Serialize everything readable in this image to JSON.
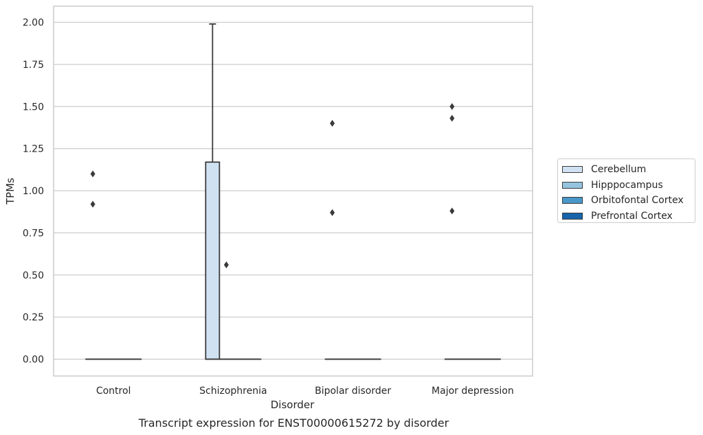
{
  "chart_data": {
    "type": "box",
    "title": "",
    "caption": "Transcript expression for ENST00000615272 by disorder",
    "xlabel": "Disorder",
    "ylabel": "TPMs",
    "ylim": [
      -0.1,
      2.1
    ],
    "yticks": [
      "0.00",
      "0.25",
      "0.50",
      "0.75",
      "1.00",
      "1.25",
      "1.50",
      "1.75",
      "2.00"
    ],
    "ytick_values": [
      0,
      0.25,
      0.5,
      0.75,
      1.0,
      1.25,
      1.5,
      1.75,
      2.0
    ],
    "categories": [
      "Control",
      "Schizophrenia",
      "Bipolar disorder",
      "Major depression"
    ],
    "grid": "horizontal",
    "legend_position": "right",
    "series": [
      {
        "name": "Cerebellum",
        "color": "#d0e1f2",
        "boxes": [
          {
            "q1": 0,
            "median": 0,
            "q3": 0,
            "whisker_low": 0,
            "whisker_high": 0,
            "outliers": [
              0.92,
              1.1
            ]
          },
          {
            "q1": 0,
            "median": 0,
            "q3": 1.17,
            "whisker_low": 0,
            "whisker_high": 1.99,
            "outliers": []
          },
          {
            "q1": 0,
            "median": 0,
            "q3": 0,
            "whisker_low": 0,
            "whisker_high": 0,
            "outliers": [
              0.87,
              1.4
            ]
          },
          {
            "q1": 0,
            "median": 0,
            "q3": 0,
            "whisker_low": 0,
            "whisker_high": 0,
            "outliers": [
              0.88,
              1.43,
              1.5
            ]
          }
        ]
      },
      {
        "name": "Hipppocampus",
        "color": "#94c4df",
        "boxes": [
          {
            "q1": 0,
            "median": 0,
            "q3": 0,
            "whisker_low": 0,
            "whisker_high": 0,
            "outliers": []
          },
          {
            "q1": 0,
            "median": 0,
            "q3": 0,
            "whisker_low": 0,
            "whisker_high": 0,
            "outliers": [
              0.56
            ]
          },
          {
            "q1": 0,
            "median": 0,
            "q3": 0,
            "whisker_low": 0,
            "whisker_high": 0,
            "outliers": []
          },
          {
            "q1": 0,
            "median": 0,
            "q3": 0,
            "whisker_low": 0,
            "whisker_high": 0,
            "outliers": []
          }
        ]
      },
      {
        "name": "Orbitofontal Cortex",
        "color": "#4a98c9",
        "boxes": [
          {
            "q1": 0,
            "median": 0,
            "q3": 0,
            "whisker_low": 0,
            "whisker_high": 0,
            "outliers": []
          },
          {
            "q1": 0,
            "median": 0,
            "q3": 0,
            "whisker_low": 0,
            "whisker_high": 0,
            "outliers": []
          },
          {
            "q1": 0,
            "median": 0,
            "q3": 0,
            "whisker_low": 0,
            "whisker_high": 0,
            "outliers": []
          },
          {
            "q1": 0,
            "median": 0,
            "q3": 0,
            "whisker_low": 0,
            "whisker_high": 0,
            "outliers": []
          }
        ]
      },
      {
        "name": "Prefrontal Cortex",
        "color": "#1764ab",
        "boxes": [
          {
            "q1": 0,
            "median": 0,
            "q3": 0,
            "whisker_low": 0,
            "whisker_high": 0,
            "outliers": []
          },
          {
            "q1": 0,
            "median": 0,
            "q3": 0,
            "whisker_low": 0,
            "whisker_high": 0,
            "outliers": []
          },
          {
            "q1": 0,
            "median": 0,
            "q3": 0,
            "whisker_low": 0,
            "whisker_high": 0,
            "outliers": []
          },
          {
            "q1": 0,
            "median": 0,
            "q3": 0,
            "whisker_low": 0,
            "whisker_high": 0,
            "outliers": []
          }
        ]
      }
    ]
  }
}
